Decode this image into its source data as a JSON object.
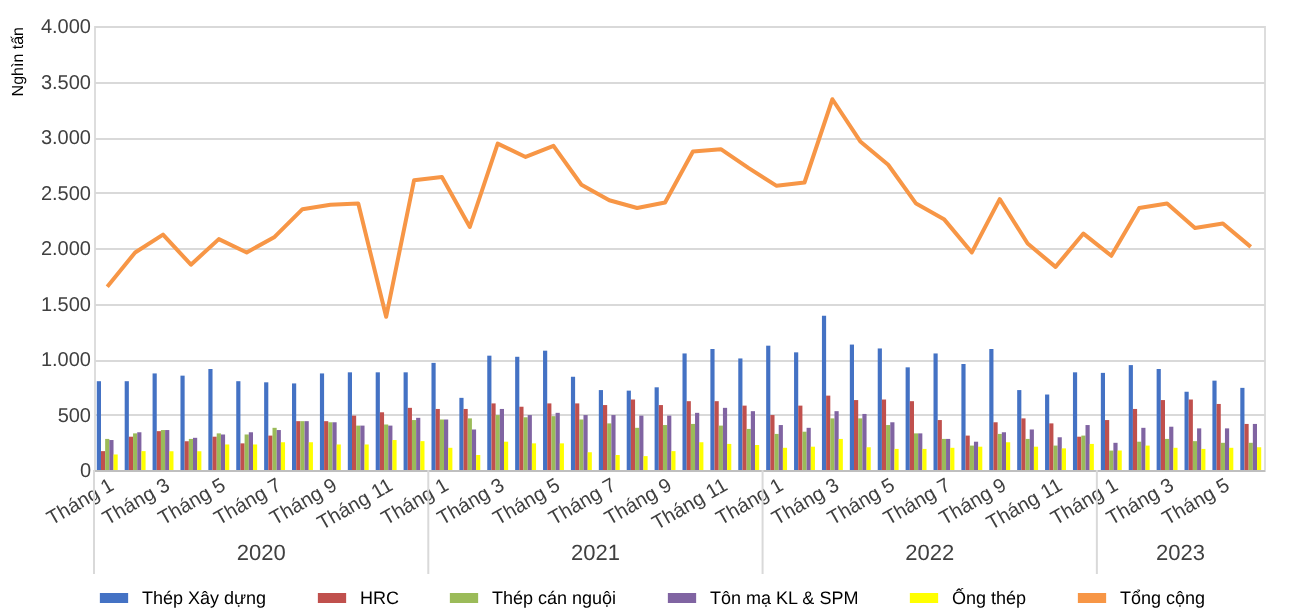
{
  "chart_data": {
    "type": "bar",
    "ylabel": "Nghìn tấn",
    "categories": [
      "Tháng 1",
      null,
      "Tháng 3",
      null,
      "Tháng 5",
      null,
      "Tháng 7",
      null,
      "Tháng 9",
      null,
      "Tháng 11",
      null,
      "Tháng 1",
      null,
      "Tháng 3",
      null,
      "Tháng 5",
      null,
      "Tháng 7",
      null,
      "Tháng 9",
      null,
      "Tháng 11",
      null,
      "Tháng 1",
      null,
      "Tháng 3",
      null,
      "Tháng 5",
      null,
      "Tháng 7",
      null,
      "Tháng 9",
      null,
      "Tháng 11",
      null,
      "Tháng 1",
      null,
      "Tháng 3",
      null,
      "Tháng 5",
      null
    ],
    "annotations": [
      "2020",
      "2021",
      "2022",
      "2023"
    ],
    "ylim": [
      0,
      4000
    ],
    "yticks": [
      0,
      500,
      {
        "value": 1000,
        "label": "1.000"
      },
      {
        "value": 1500,
        "label": "1.500"
      },
      {
        "value": 2000,
        "label": "2.000"
      },
      {
        "value": 2500,
        "label": "2.500"
      },
      {
        "value": 3000,
        "label": "3.000"
      },
      {
        "value": 3500,
        "label": "3.500"
      },
      {
        "value": 4000,
        "label": "4.000"
      }
    ],
    "grid": "y",
    "legend": "bottom",
    "series": [
      {
        "name": "Thép Xây dựng",
        "color": "#4472c4",
        "values": [
          800,
          800,
          870,
          850,
          910,
          800,
          790,
          780,
          870,
          880,
          880,
          880,
          965,
          650,
          1030,
          1020,
          1075,
          840,
          720,
          715,
          745,
          1050,
          1090,
          1005,
          1120,
          1060,
          1390,
          1130,
          1095,
          925,
          1050,
          955,
          1090,
          720,
          680,
          880,
          875,
          945,
          910,
          705,
          805,
          740
        ]
      },
      {
        "name": "HRC",
        "color": "#c0504d",
        "values": [
          170,
          300,
          350,
          260,
          300,
          240,
          310,
          440,
          440,
          490,
          520,
          560,
          550,
          550,
          600,
          570,
          600,
          600,
          585,
          635,
          585,
          620,
          620,
          580,
          495,
          580,
          670,
          630,
          635,
          620,
          450,
          310,
          430,
          465,
          420,
          300,
          450,
          550,
          630,
          635,
          595,
          415
        ]
      },
      {
        "name": "Thép cán nguội",
        "color": "#9bbb59",
        "values": [
          280,
          330,
          360,
          280,
          330,
          320,
          380,
          440,
          430,
          400,
          410,
          450,
          455,
          465,
          495,
          475,
          485,
          455,
          420,
          380,
          405,
          415,
          400,
          370,
          325,
          345,
          465,
          465,
          405,
          330,
          280,
          220,
          325,
          280,
          220,
          310,
          175,
          255,
          280,
          260,
          245,
          245
        ]
      },
      {
        "name": "Tôn mạ KL & SPM",
        "color": "#8064a2",
        "values": [
          270,
          340,
          360,
          290,
          320,
          340,
          360,
          440,
          430,
          400,
          400,
          470,
          455,
          365,
          550,
          495,
          515,
          495,
          495,
          490,
          490,
          515,
          560,
          530,
          405,
          380,
          530,
          505,
          430,
          330,
          280,
          255,
          340,
          365,
          295,
          405,
          245,
          380,
          390,
          375,
          375,
          415
        ]
      },
      {
        "name": "Ống thép",
        "color": "#ffff00",
        "values": [
          140,
          170,
          170,
          170,
          230,
          230,
          250,
          250,
          230,
          230,
          270,
          260,
          200,
          135,
          255,
          240,
          240,
          160,
          135,
          125,
          170,
          250,
          235,
          225,
          200,
          210,
          280,
          205,
          190,
          190,
          200,
          210,
          250,
          210,
          195,
          235,
          175,
          220,
          200,
          190,
          200,
          205
        ]
      },
      {
        "name": "Tổng cộng",
        "type": "line",
        "color": "#f79646",
        "values": [
          1650,
          1960,
          2120,
          1850,
          2080,
          1960,
          2100,
          2350,
          2390,
          2400,
          1380,
          2610,
          2640,
          2190,
          2940,
          2820,
          2920,
          2570,
          2430,
          2360,
          2410,
          2870,
          2890,
          2720,
          2560,
          2590,
          3340,
          2960,
          2750,
          2400,
          2260,
          1960,
          2440,
          2040,
          1830,
          2130,
          1930,
          2360,
          2400,
          2180,
          2220,
          2010
        ]
      }
    ]
  }
}
